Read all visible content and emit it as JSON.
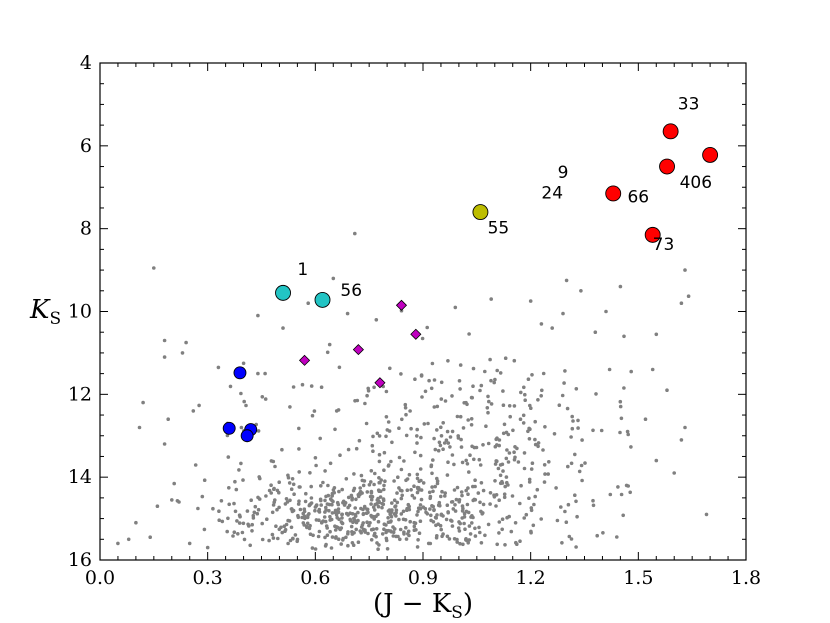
{
  "chart_data": {
    "type": "scatter",
    "title": "",
    "xlabel": "(J − K",
    "xlabel_sub": "S",
    "xlabel_close": ")",
    "ylabel": "K",
    "ylabel_sub": "S",
    "xlim": [
      0.0,
      1.8
    ],
    "ylim": [
      16,
      4
    ],
    "y_inverted": true,
    "grid": false,
    "xticks": [
      0.0,
      0.3,
      0.6,
      0.9,
      1.2,
      1.5,
      1.8
    ],
    "xtick_labels": [
      "0.0",
      "0.3",
      "0.6",
      "0.9",
      "1.2",
      "1.5",
      "1.8"
    ],
    "yticks": [
      4,
      6,
      8,
      10,
      12,
      14,
      16
    ],
    "ytick_labels": [
      "4",
      "6",
      "8",
      "10",
      "12",
      "14",
      "16"
    ],
    "colors": {
      "field": "#808080",
      "red": "#ff0000",
      "yellow": "#bdbd00",
      "cyan": "#22c4c4",
      "blue": "#0000ff",
      "magenta": "#c000c0",
      "edge": "#000000"
    },
    "series": [
      {
        "name": "red",
        "marker": "circle-large",
        "color_key": "red",
        "points": [
          [
            1.59,
            5.65
          ],
          [
            1.58,
            6.5
          ],
          [
            1.7,
            6.22
          ],
          [
            1.43,
            7.15
          ],
          [
            1.54,
            8.15
          ]
        ]
      },
      {
        "name": "yellow",
        "marker": "circle-large",
        "color_key": "yellow",
        "points": [
          [
            1.06,
            7.6
          ]
        ]
      },
      {
        "name": "cyan",
        "marker": "circle-large",
        "color_key": "cyan",
        "points": [
          [
            0.51,
            9.55
          ],
          [
            0.62,
            9.72
          ]
        ]
      },
      {
        "name": "blue",
        "marker": "circle-medium",
        "color_key": "blue",
        "points": [
          [
            0.39,
            11.48
          ],
          [
            0.36,
            12.82
          ],
          [
            0.42,
            12.85
          ],
          [
            0.41,
            13.0
          ]
        ]
      },
      {
        "name": "magenta",
        "marker": "diamond",
        "color_key": "magenta",
        "points": [
          [
            0.84,
            9.85
          ],
          [
            0.88,
            10.55
          ],
          [
            0.72,
            10.92
          ],
          [
            0.57,
            11.18
          ],
          [
            0.78,
            11.72
          ]
        ]
      }
    ],
    "field_stars": {
      "description": "small grey dots",
      "count": 1000,
      "sparse_points": [
        [
          0.15,
          8.95
        ],
        [
          0.71,
          8.12
        ],
        [
          0.65,
          9.2
        ],
        [
          0.58,
          9.8
        ],
        [
          0.44,
          10.1
        ],
        [
          0.84,
          9.98
        ],
        [
          0.77,
          10.2
        ],
        [
          0.18,
          10.7
        ],
        [
          0.24,
          10.75
        ],
        [
          0.23,
          11.0
        ],
        [
          0.18,
          11.1
        ],
        [
          0.33,
          11.35
        ],
        [
          0.44,
          11.5
        ],
        [
          0.46,
          11.5
        ],
        [
          0.4,
          11.25
        ],
        [
          0.59,
          11.8
        ],
        [
          0.12,
          12.2
        ],
        [
          0.19,
          12.6
        ],
        [
          0.11,
          12.8
        ],
        [
          0.26,
          12.4
        ],
        [
          0.18,
          13.2
        ],
        [
          1.34,
          9.5
        ],
        [
          1.45,
          9.4
        ],
        [
          1.63,
          9.0
        ],
        [
          1.64,
          9.63
        ],
        [
          1.55,
          10.55
        ],
        [
          1.62,
          9.8
        ],
        [
          1.09,
          9.7
        ],
        [
          0.99,
          9.9
        ],
        [
          1.2,
          9.75
        ],
        [
          1.41,
          10.0
        ],
        [
          1.29,
          10.05
        ],
        [
          1.38,
          10.5
        ],
        [
          1.46,
          10.6
        ],
        [
          1.26,
          10.4
        ],
        [
          1.23,
          10.3
        ],
        [
          1.42,
          11.4
        ],
        [
          1.48,
          11.45
        ],
        [
          1.54,
          11.4
        ],
        [
          1.58,
          11.9
        ],
        [
          1.63,
          12.8
        ],
        [
          1.52,
          12.6
        ],
        [
          1.55,
          13.6
        ],
        [
          1.69,
          14.9
        ],
        [
          1.3,
          9.25
        ],
        [
          0.05,
          15.6
        ],
        [
          0.08,
          15.5
        ],
        [
          0.1,
          15.1
        ],
        [
          0.14,
          15.45
        ],
        [
          0.16,
          14.7
        ],
        [
          0.2,
          14.55
        ],
        [
          0.22,
          14.6
        ],
        [
          0.25,
          15.6
        ],
        [
          0.3,
          15.7
        ],
        [
          1.62,
          13.1
        ],
        [
          1.6,
          13.9
        ],
        [
          1.47,
          12.9
        ],
        [
          0.64,
          10.8
        ],
        [
          0.69,
          10.05
        ],
        [
          0.51,
          10.4
        ]
      ],
      "dense_region": {
        "x": [
          0.2,
          1.6
        ],
        "y": [
          12.0,
          15.7
        ],
        "peak_x": 0.75,
        "peak_y": 14.9
      }
    },
    "annotations": [
      {
        "text": "33",
        "x": 1.64,
        "y": 5.0
      },
      {
        "text": "9",
        "x": 1.29,
        "y": 6.65
      },
      {
        "text": "24",
        "x": 1.26,
        "y": 7.15
      },
      {
        "text": "66",
        "x": 1.5,
        "y": 7.25
      },
      {
        "text": "406",
        "x": 1.66,
        "y": 6.9
      },
      {
        "text": "55",
        "x": 1.11,
        "y": 8.0
      },
      {
        "text": "73",
        "x": 1.57,
        "y": 8.4
      },
      {
        "text": "1",
        "x": 0.565,
        "y": 9.0
      },
      {
        "text": "56",
        "x": 0.7,
        "y": 9.5
      }
    ]
  }
}
